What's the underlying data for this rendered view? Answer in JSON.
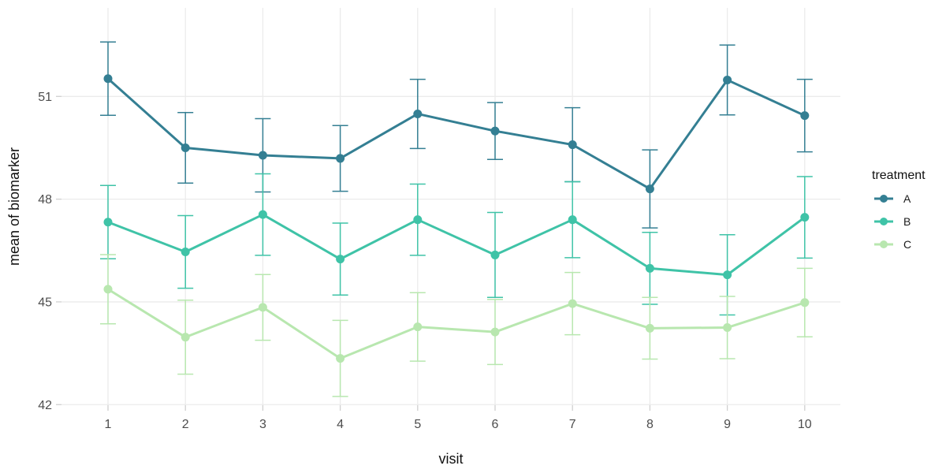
{
  "chart_data": {
    "type": "line",
    "title": "",
    "xlabel": "visit",
    "ylabel": "mean of biomarker",
    "x": [
      1,
      2,
      3,
      4,
      5,
      6,
      7,
      8,
      9,
      10
    ],
    "yticks": [
      42,
      45,
      48,
      51
    ],
    "ylim": [
      41.2,
      53.6
    ],
    "grid": "major-only",
    "background": "#ffffff",
    "grid_color": "#ebebeb",
    "tick_label_color": "#4d4d4d",
    "axis_title_color": "#111111",
    "legend": {
      "title": "treatment",
      "position": "right"
    },
    "series": [
      {
        "name": "A",
        "color": "#347f93",
        "values": [
          51.52,
          49.5,
          49.28,
          49.19,
          50.49,
          49.99,
          49.59,
          48.3,
          51.48,
          50.44
        ],
        "errors": [
          1.07,
          1.03,
          1.07,
          0.96,
          1.01,
          0.83,
          1.08,
          1.14,
          1.02,
          1.06
        ]
      },
      {
        "name": "B",
        "color": "#3fc3a7",
        "values": [
          47.33,
          46.46,
          47.55,
          46.25,
          47.4,
          46.37,
          47.4,
          45.98,
          45.79,
          47.47
        ],
        "errors": [
          1.07,
          1.06,
          1.19,
          1.05,
          1.04,
          1.24,
          1.11,
          1.05,
          1.17,
          1.19
        ]
      },
      {
        "name": "C",
        "color": "#b8e7af",
        "values": [
          45.37,
          43.97,
          44.84,
          43.35,
          44.27,
          44.12,
          44.95,
          44.23,
          44.25,
          44.98
        ],
        "errors": [
          1.01,
          1.08,
          0.96,
          1.11,
          1.0,
          0.95,
          0.91,
          0.9,
          0.91,
          1.0
        ]
      }
    ]
  }
}
